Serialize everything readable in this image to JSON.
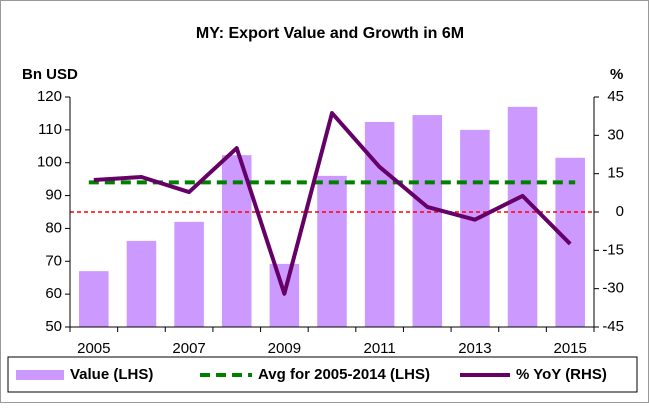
{
  "chart_data": {
    "type": "bar-line",
    "title": "MY: Export Value and Growth in 6M",
    "y_label": "Bn USD",
    "y2_label": "%",
    "categories": [
      "2005",
      null,
      "2007",
      null,
      "2009",
      null,
      "2011",
      null,
      "2013",
      null,
      "2015"
    ],
    "series": [
      {
        "name": "Value (LHS)",
        "type": "bar",
        "color": "#cc99ff",
        "values": [
          67,
          76.2,
          82,
          102.3,
          69.2,
          96,
          112.4,
          114.5,
          110,
          117,
          101.5
        ]
      },
      {
        "name": "% YoY (RHS)",
        "type": "line",
        "axis": "y2",
        "color": "#660066",
        "values": [
          12.5,
          13.7,
          7.8,
          25,
          -32,
          38.7,
          17.6,
          2,
          -3,
          6.3,
          -12.5
        ]
      }
    ],
    "avg_line": {
      "name": "Avg for 2005-2014 (LHS)",
      "value": 94,
      "color": "#008000"
    },
    "y2_reference_line": {
      "value": 0,
      "color": "#ff0000"
    },
    "ylim": [
      50,
      120
    ],
    "yticks": [
      50,
      60,
      70,
      80,
      90,
      100,
      110,
      120
    ],
    "y2lim": [
      -45,
      45
    ],
    "y2ticks": [
      -45,
      -30,
      -15,
      0,
      15,
      30,
      45
    ]
  }
}
